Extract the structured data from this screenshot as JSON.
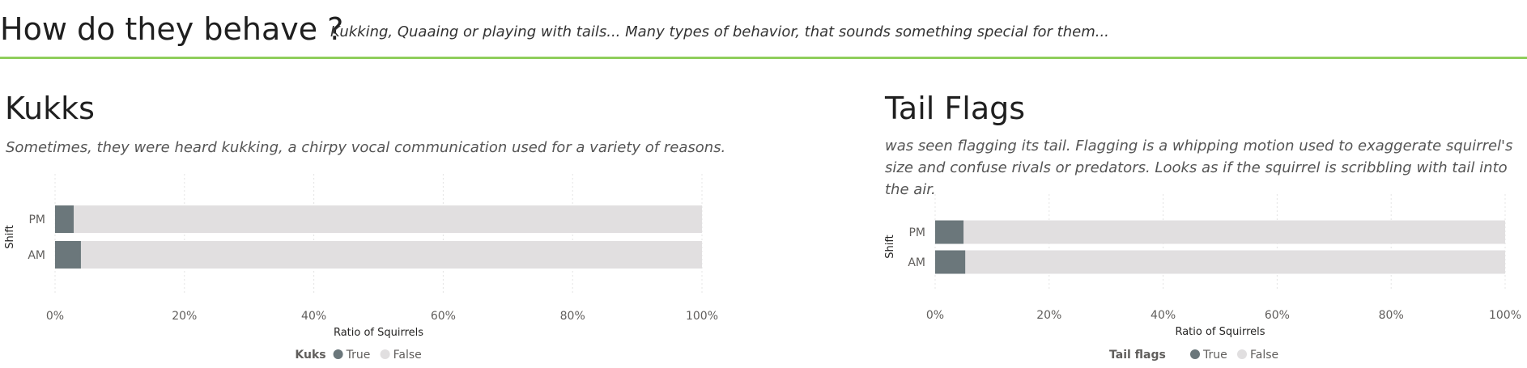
{
  "header": {
    "title": "How do they behave ?",
    "subtitle": "Kukking, Quaaing or playing with tails... Many types of behavior, that sounds something special for them..."
  },
  "panels": [
    {
      "title": "Kukks",
      "description": "Sometimes, they were heard kukking, a chirpy vocal communication used for a variety of reasons."
    },
    {
      "title": "Tail Flags",
      "description": "was seen flagging its tail. Flagging is a whipping motion used to exaggerate squirrel's size and confuse rivals or predators. Looks as if the squirrel is scribbling with tail into the air."
    }
  ],
  "colors": {
    "true": "#6b777b",
    "false": "#e1dfe0",
    "accent": "#8fce5c"
  },
  "chart_data": [
    {
      "type": "bar",
      "orientation": "horizontal",
      "stacked": "100%",
      "categories": [
        "PM",
        "AM"
      ],
      "series": [
        {
          "name": "True",
          "values": [
            0.029,
            0.04
          ]
        },
        {
          "name": "False",
          "values": [
            0.971,
            0.96
          ]
        }
      ],
      "xlabel": "Ratio of Squirrels",
      "ylabel": "Shift",
      "xticks": [
        "0%",
        "20%",
        "40%",
        "60%",
        "80%",
        "100%"
      ],
      "xlim": [
        0,
        1
      ],
      "legend_title": "Kuks",
      "legend_position": "bottom-center",
      "grid": "vertical-dotted"
    },
    {
      "type": "bar",
      "orientation": "horizontal",
      "stacked": "100%",
      "categories": [
        "PM",
        "AM"
      ],
      "series": [
        {
          "name": "True",
          "values": [
            0.05,
            0.053
          ]
        },
        {
          "name": "False",
          "values": [
            0.95,
            0.947
          ]
        }
      ],
      "xlabel": "Ratio of Squirrels",
      "ylabel": "Shift",
      "xticks": [
        "0%",
        "20%",
        "40%",
        "60%",
        "80%",
        "100%"
      ],
      "xlim": [
        0,
        1
      ],
      "legend_title": "Tail flags",
      "legend_position": "bottom-center",
      "grid": "vertical-dotted"
    }
  ]
}
